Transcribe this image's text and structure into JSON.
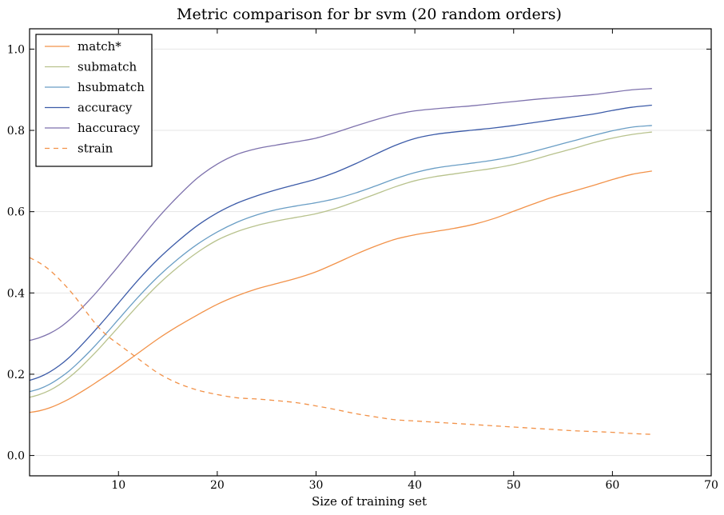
{
  "chart_data": {
    "type": "line",
    "title": "Metric comparison for br svm (20 random orders)",
    "xlabel": "Size of training set",
    "ylabel": "",
    "xlim": [
      1,
      70
    ],
    "ylim": [
      -0.05,
      1.05
    ],
    "xticks": [
      10,
      20,
      30,
      40,
      50,
      60,
      70
    ],
    "yticks": [
      0.0,
      0.2,
      0.4,
      0.6,
      0.8,
      1.0
    ],
    "ytick_labels": [
      "0.0",
      "0.2",
      "0.4",
      "0.6",
      "0.8",
      "1.0"
    ],
    "grid": "horizontal",
    "legend_position": "top-left",
    "x": [
      1,
      2,
      3,
      4,
      5,
      6,
      7,
      8,
      9,
      10,
      12,
      14,
      16,
      18,
      20,
      22,
      24,
      26,
      28,
      30,
      32,
      34,
      36,
      38,
      40,
      42,
      44,
      46,
      48,
      50,
      52,
      54,
      56,
      58,
      60,
      62,
      64
    ],
    "series": [
      {
        "name": "match*",
        "color": "#f29249",
        "dash": "solid",
        "values": [
          0.106,
          0.11,
          0.117,
          0.127,
          0.139,
          0.153,
          0.168,
          0.184,
          0.2,
          0.217,
          0.252,
          0.287,
          0.318,
          0.346,
          0.372,
          0.393,
          0.41,
          0.423,
          0.436,
          0.452,
          0.473,
          0.495,
          0.515,
          0.532,
          0.543,
          0.551,
          0.559,
          0.569,
          0.583,
          0.601,
          0.619,
          0.636,
          0.65,
          0.664,
          0.679,
          0.692,
          0.7
        ]
      },
      {
        "name": "submatch",
        "color": "#b8c28d",
        "dash": "solid",
        "values": [
          0.143,
          0.15,
          0.16,
          0.174,
          0.192,
          0.213,
          0.237,
          0.262,
          0.289,
          0.316,
          0.37,
          0.42,
          0.463,
          0.5,
          0.53,
          0.551,
          0.566,
          0.577,
          0.586,
          0.595,
          0.608,
          0.625,
          0.643,
          0.661,
          0.676,
          0.686,
          0.693,
          0.7,
          0.707,
          0.716,
          0.728,
          0.742,
          0.755,
          0.769,
          0.781,
          0.79,
          0.796
        ]
      },
      {
        "name": "hsubmatch",
        "color": "#6a9ec5",
        "dash": "solid",
        "values": [
          0.157,
          0.164,
          0.175,
          0.19,
          0.208,
          0.23,
          0.254,
          0.28,
          0.307,
          0.335,
          0.39,
          0.44,
          0.483,
          0.52,
          0.55,
          0.574,
          0.592,
          0.605,
          0.614,
          0.622,
          0.632,
          0.646,
          0.663,
          0.681,
          0.696,
          0.707,
          0.714,
          0.72,
          0.727,
          0.736,
          0.748,
          0.761,
          0.774,
          0.787,
          0.799,
          0.808,
          0.812
        ]
      },
      {
        "name": "accuracy",
        "color": "#3c5ba8",
        "dash": "solid",
        "values": [
          0.185,
          0.193,
          0.205,
          0.221,
          0.241,
          0.265,
          0.291,
          0.318,
          0.346,
          0.375,
          0.432,
          0.483,
          0.527,
          0.566,
          0.597,
          0.621,
          0.639,
          0.654,
          0.667,
          0.68,
          0.697,
          0.718,
          0.741,
          0.763,
          0.78,
          0.79,
          0.796,
          0.801,
          0.806,
          0.812,
          0.819,
          0.826,
          0.833,
          0.84,
          0.849,
          0.857,
          0.862
        ]
      },
      {
        "name": "haccuracy",
        "color": "#7e72ad",
        "dash": "solid",
        "values": [
          0.283,
          0.29,
          0.3,
          0.314,
          0.333,
          0.356,
          0.381,
          0.408,
          0.437,
          0.466,
          0.526,
          0.585,
          0.637,
          0.683,
          0.717,
          0.741,
          0.755,
          0.764,
          0.772,
          0.781,
          0.795,
          0.811,
          0.826,
          0.839,
          0.848,
          0.853,
          0.857,
          0.861,
          0.866,
          0.871,
          0.876,
          0.88,
          0.884,
          0.888,
          0.894,
          0.9,
          0.903
        ]
      },
      {
        "name": "strain",
        "color": "#f29249",
        "dash": "dashed",
        "values": [
          0.487,
          0.474,
          0.457,
          0.434,
          0.408,
          0.378,
          0.345,
          0.315,
          0.292,
          0.274,
          0.238,
          0.203,
          0.178,
          0.161,
          0.15,
          0.142,
          0.139,
          0.135,
          0.13,
          0.122,
          0.113,
          0.103,
          0.095,
          0.088,
          0.085,
          0.082,
          0.079,
          0.076,
          0.073,
          0.07,
          0.067,
          0.064,
          0.061,
          0.059,
          0.057,
          0.054,
          0.052
        ]
      }
    ]
  }
}
